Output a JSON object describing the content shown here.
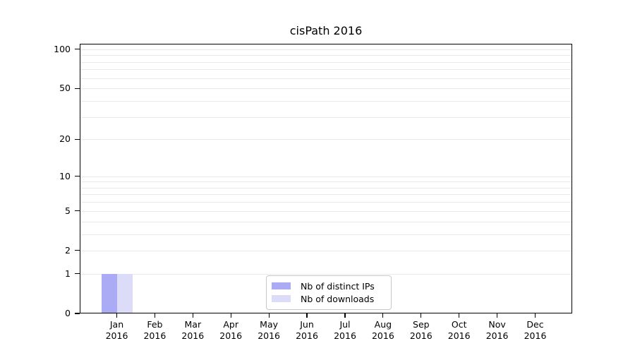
{
  "chart_data": {
    "type": "bar",
    "title": "cisPath 2016",
    "categories": [
      "Jan",
      "Feb",
      "Mar",
      "Apr",
      "May",
      "Jun",
      "Jul",
      "Aug",
      "Sep",
      "Oct",
      "Nov",
      "Dec"
    ],
    "category_year": "2016",
    "series": [
      {
        "name": "Nb of distinct IPs",
        "color": "#aaaaf5",
        "values": [
          1,
          0,
          0,
          0,
          0,
          0,
          0,
          0,
          0,
          0,
          0,
          0
        ]
      },
      {
        "name": "Nb of downloads",
        "color": "#dcdcf8",
        "values": [
          1,
          0,
          0,
          0,
          0,
          0,
          0,
          0,
          0,
          0,
          0,
          0
        ]
      }
    ],
    "y_scale": "log1p",
    "y_max": 110,
    "y_ticks": [
      0,
      1,
      2,
      5,
      10,
      20,
      50,
      100
    ],
    "y_gridlines": [
      1,
      2,
      3,
      4,
      5,
      6,
      7,
      8,
      9,
      10,
      20,
      30,
      40,
      50,
      60,
      70,
      80,
      90,
      100
    ],
    "grid_color": "#e9e9e9",
    "axis_color": "#000000",
    "legend_position": "bottom-center",
    "ylim": [
      0,
      110
    ]
  }
}
